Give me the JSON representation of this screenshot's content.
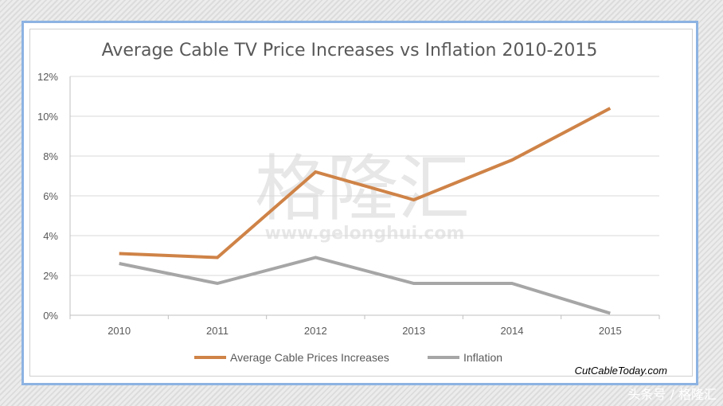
{
  "chart_data": {
    "type": "line",
    "title": "Average Cable TV Price Increases vs Inflation 2010-2015",
    "xlabel": "",
    "ylabel": "",
    "categories": [
      "2010",
      "2011",
      "2012",
      "2013",
      "2014",
      "2015"
    ],
    "ylim": [
      0,
      12
    ],
    "yticks": [
      "0%",
      "2%",
      "4%",
      "6%",
      "8%",
      "10%",
      "12%"
    ],
    "series": [
      {
        "name": "Average Cable Prices Increases",
        "color": "#cf8347",
        "values": [
          3.1,
          2.9,
          7.2,
          5.8,
          7.8,
          10.4
        ]
      },
      {
        "name": "Inflation",
        "color": "#a6a6a6",
        "values": [
          2.6,
          1.6,
          2.9,
          1.6,
          1.6,
          0.1
        ]
      }
    ],
    "legend_position": "bottom",
    "source_note": "CutCableToday.com",
    "grid": true
  },
  "watermark": {
    "chars": "格隆汇",
    "url": "www.gelonghui.com"
  },
  "footer_caption": "头条号 / 格隆汇",
  "colors": {
    "frame_border": "#8db3e2",
    "grid": "#d9d9d9",
    "axis": "#bfbfbf",
    "text": "#595959"
  }
}
